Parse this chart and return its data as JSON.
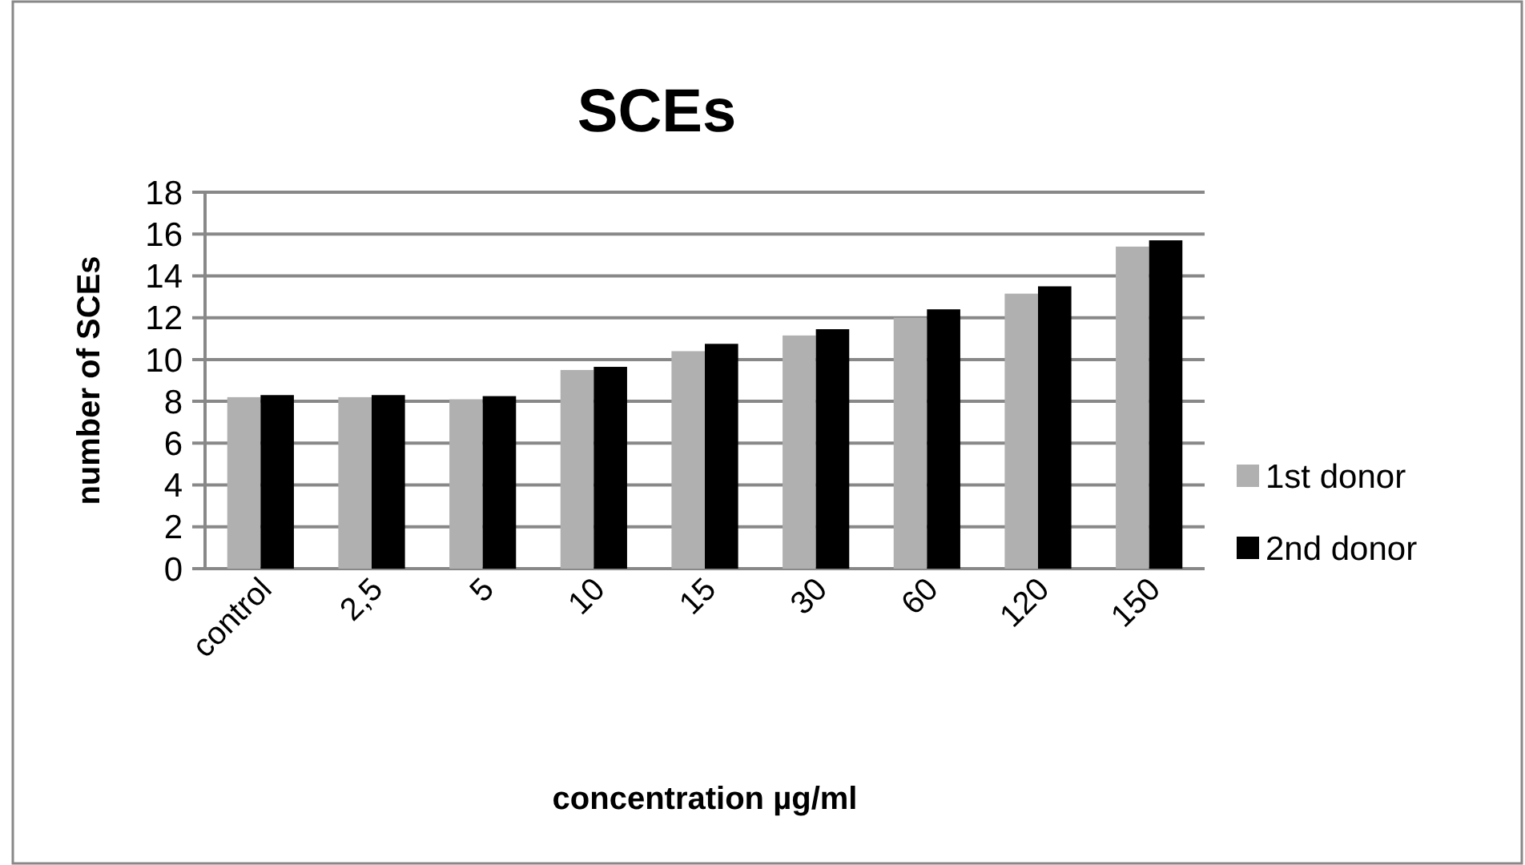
{
  "chart_data": {
    "type": "bar",
    "title": "SCEs",
    "xlabel": "concentration µg/ml",
    "ylabel": "number of SCEs",
    "categories": [
      "control",
      "2,5",
      "5",
      "10",
      "15",
      "30",
      "60",
      "120",
      "150"
    ],
    "series": [
      {
        "name": "1st donor",
        "color": "#b0b0b0",
        "values": [
          8.2,
          8.2,
          8.1,
          9.5,
          10.4,
          11.15,
          12.0,
          13.15,
          15.4
        ]
      },
      {
        "name": "2nd donor",
        "color": "#000000",
        "values": [
          8.3,
          8.3,
          8.25,
          9.65,
          10.75,
          11.45,
          12.4,
          13.5,
          15.7
        ]
      }
    ],
    "ylim": [
      0,
      18
    ],
    "yticks": [
      0,
      2,
      4,
      6,
      8,
      10,
      12,
      14,
      16,
      18
    ],
    "grid": "y",
    "legend": "right"
  }
}
